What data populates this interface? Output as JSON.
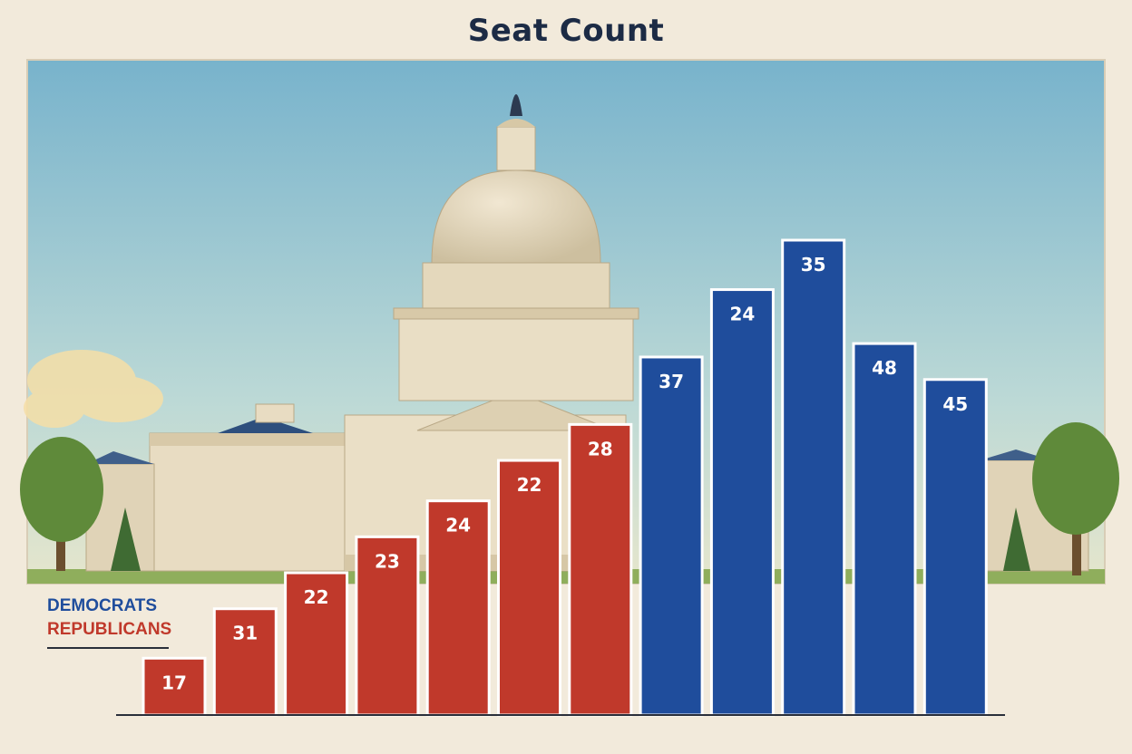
{
  "chart_data": {
    "type": "bar",
    "title": "Seat Count",
    "xlabel": "",
    "ylabel": "",
    "categories": [
      "",
      "",
      "",
      "",
      "",
      "",
      "",
      "",
      "",
      "",
      "",
      "",
      ""
    ],
    "series": [
      {
        "name": "REPUBLICANS",
        "color": "#c0392b",
        "values": [
          17,
          31,
          22,
          23,
          24,
          22,
          28,
          null,
          null,
          null,
          null,
          null,
          null
        ]
      },
      {
        "name": "DEMOCRATS",
        "color": "#1f4d9c",
        "values": [
          null,
          null,
          null,
          null,
          null,
          null,
          null,
          37,
          24,
          35,
          48,
          45,
          null
        ]
      }
    ],
    "bars": [
      {
        "party": "REPUBLICANS",
        "label": "17",
        "level": 0.07
      },
      {
        "party": "REPUBLICANS",
        "label": "31",
        "level": 0.18
      },
      {
        "party": "REPUBLICANS",
        "label": "22",
        "level": 0.26
      },
      {
        "party": "REPUBLICANS",
        "label": "23",
        "level": 0.34
      },
      {
        "party": "REPUBLICANS",
        "label": "24",
        "level": 0.42
      },
      {
        "party": "REPUBLICANS",
        "label": "22",
        "level": 0.51
      },
      {
        "party": "REPUBLICANS",
        "label": "28",
        "level": 0.59
      },
      {
        "party": "DEMOCRATS",
        "label": "37",
        "level": 0.74
      },
      {
        "party": "DEMOCRATS",
        "label": "24",
        "level": 0.89
      },
      {
        "party": "DEMOCRATS",
        "label": "35",
        "level": 1.0
      },
      {
        "party": "DEMOCRATS",
        "label": "48",
        "level": 0.77
      },
      {
        "party": "DEMOCRATS",
        "label": "45",
        "level": 0.69
      }
    ],
    "legend": {
      "position": "left",
      "entries": [
        "DEMOCRATS",
        "REPUBLICANS"
      ]
    },
    "grid": false
  },
  "legend": {
    "democrats": "DEMOCRATS",
    "republicans": "REPUBLICANS"
  },
  "colors": {
    "republican": "#c0392b",
    "democrat": "#1f4d9c",
    "background": "#f2eadb",
    "sky_top": "#78b3cc",
    "sky_bottom": "#cfe2d6"
  }
}
